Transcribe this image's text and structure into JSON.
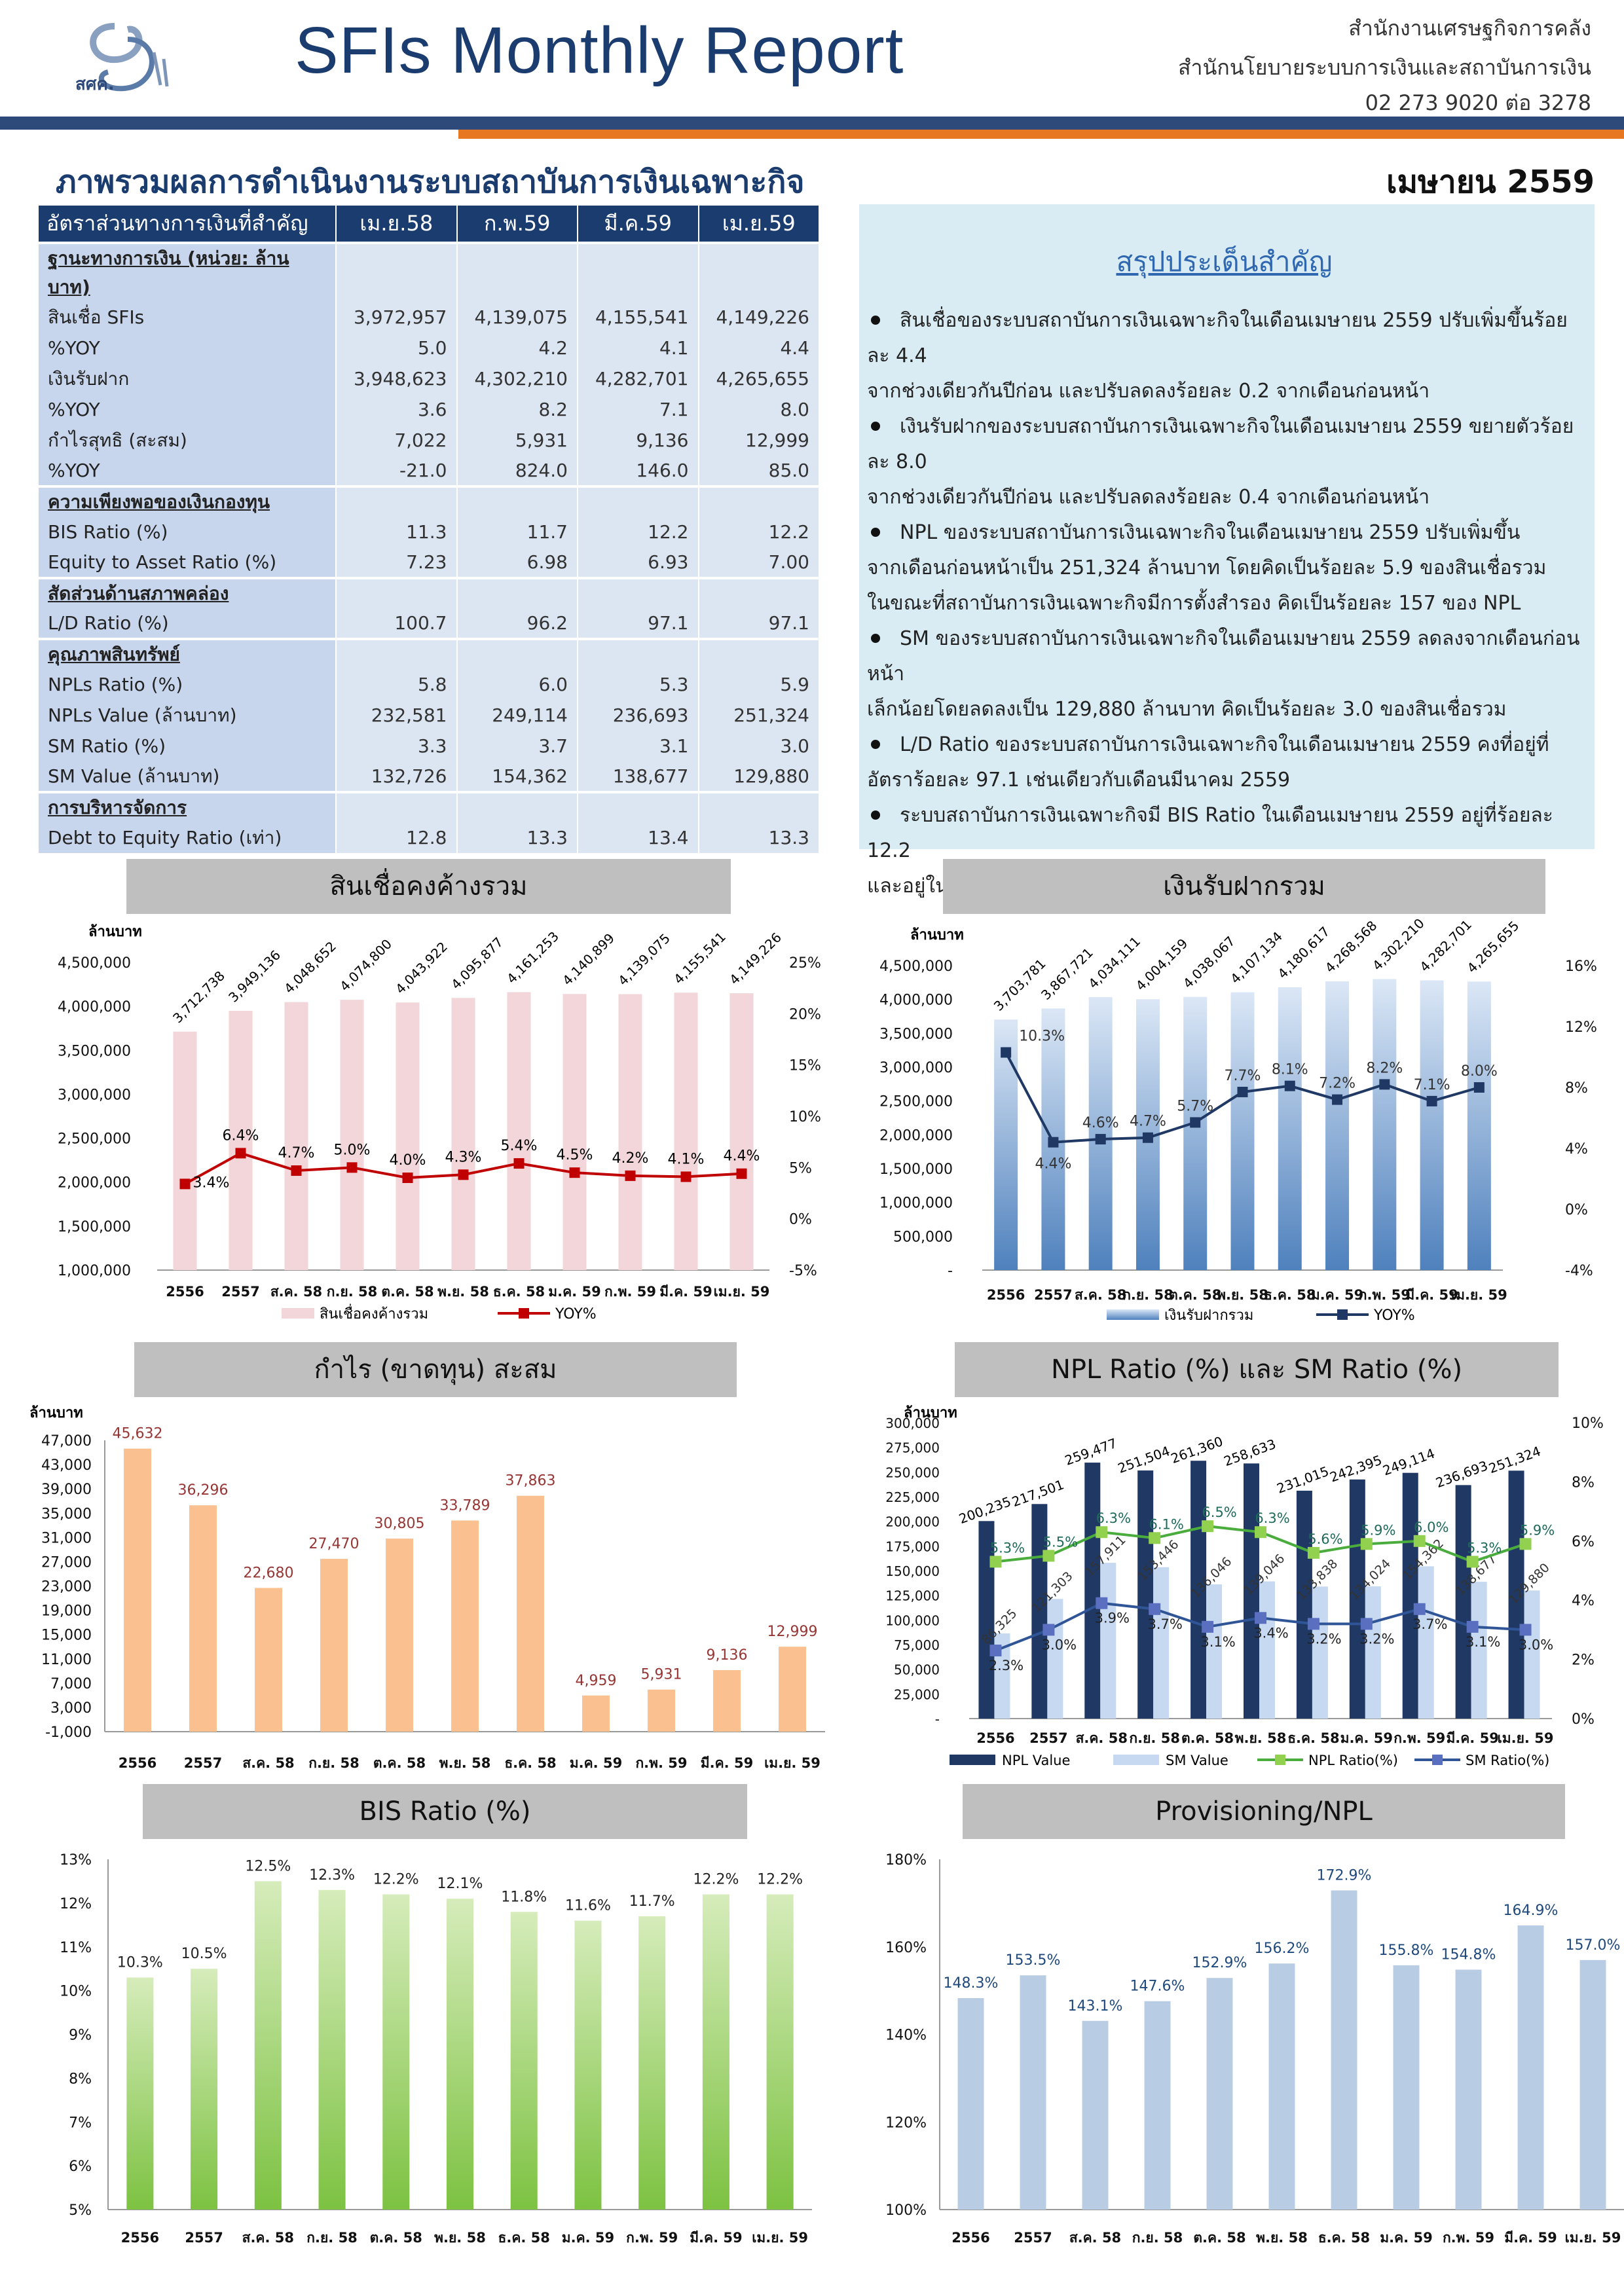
{
  "header": {
    "title": "SFIs Monthly Report",
    "logo_text": "สศค.",
    "agency1": "สำนักงานเศรษฐกิจการคลัง",
    "agency2": "สำนักนโยบายระบบการเงินและสถาบันการเงิน",
    "phone": "02 273 9020 ต่อ 3278"
  },
  "overview_title": "ภาพรวมผลการดำเนินงานระบบสถาบันการเงินเฉพาะกิจ",
  "month": "เมษายน 2559",
  "table": {
    "header": [
      "อัตราส่วนทางการเงินที่สำคัญ",
      "เม.ย.58",
      "ก.พ.59",
      "มี.ค.59",
      "เม.ย.59"
    ],
    "rows": [
      {
        "t": "sec",
        "l": "ฐานะทางการเงิน (หน่วย: ล้านบาท)",
        "v": [
          "",
          "",
          "",
          ""
        ]
      },
      {
        "l": "สินเชื่อ SFIs",
        "v": [
          "3,972,957",
          "4,139,075",
          "4,155,541",
          "4,149,226"
        ]
      },
      {
        "l": "%YOY",
        "v": [
          "5.0",
          "4.2",
          "4.1",
          "4.4"
        ]
      },
      {
        "l": "เงินรับฝาก",
        "v": [
          "3,948,623",
          "4,302,210",
          "4,282,701",
          "4,265,655"
        ]
      },
      {
        "l": "%YOY",
        "v": [
          "3.6",
          "8.2",
          "7.1",
          "8.0"
        ]
      },
      {
        "l": "กำไรสุทธิ (สะสม)",
        "v": [
          "7,022",
          "5,931",
          "9,136",
          "12,999"
        ]
      },
      {
        "l": "%YOY",
        "v": [
          "-21.0",
          "824.0",
          "146.0",
          "85.0"
        ]
      },
      {
        "t": "sec",
        "l": "ความเพียงพอของเงินกองทุน",
        "v": [
          "",
          "",
          "",
          ""
        ]
      },
      {
        "l": "BIS Ratio (%)",
        "v": [
          "11.3",
          "11.7",
          "12.2",
          "12.2"
        ]
      },
      {
        "l": "Equity to Asset Ratio (%)",
        "v": [
          "7.23",
          "6.98",
          "6.93",
          "7.00"
        ]
      },
      {
        "t": "sec",
        "l": "สัดส่วนด้านสภาพคล่อง",
        "v": [
          "",
          "",
          "",
          ""
        ]
      },
      {
        "l": "L/D Ratio (%)",
        "v": [
          "100.7",
          "96.2",
          "97.1",
          "97.1"
        ]
      },
      {
        "t": "sec",
        "l": "คุณภาพสินทรัพย์",
        "v": [
          "",
          "",
          "",
          ""
        ]
      },
      {
        "l": "NPLs Ratio (%)",
        "v": [
          "5.8",
          "6.0",
          "5.3",
          "5.9"
        ]
      },
      {
        "l": "NPLs Value (ล้านบาท)",
        "v": [
          "232,581",
          "249,114",
          "236,693",
          "251,324"
        ]
      },
      {
        "l": "SM Ratio (%)",
        "v": [
          "3.3",
          "3.7",
          "3.1",
          "3.0"
        ]
      },
      {
        "l": "SM Value (ล้านบาท)",
        "v": [
          "132,726",
          "154,362",
          "138,677",
          "129,880"
        ]
      },
      {
        "t": "sec",
        "l": "การบริหารจัดการ",
        "v": [
          "",
          "",
          "",
          ""
        ]
      },
      {
        "l": "Debt to Equity Ratio (เท่า)",
        "v": [
          "12.8",
          "13.3",
          "13.4",
          "13.3"
        ]
      }
    ]
  },
  "summary": {
    "title": "สรุปประเด็นสำคัญ",
    "bullets": [
      [
        "สินเชื่อของระบบสถาบันการเงินเฉพาะกิจในเดือนเมษายน 2559 ปรับเพิ่มขึ้นร้อยละ 4.4",
        "จากช่วงเดียวกันปีก่อน และปรับลดลงร้อยละ 0.2 จากเดือนก่อนหน้า"
      ],
      [
        "เงินรับฝากของระบบสถาบันการเงินเฉพาะกิจในเดือนเมษายน 2559 ขยายตัวร้อยละ 8.0",
        "จากช่วงเดียวกันปีก่อน และปรับลดลงร้อยละ 0.4 จากเดือนก่อนหน้า"
      ],
      [
        "NPL ของระบบสถาบันการเงินเฉพาะกิจในเดือนเมษายน 2559 ปรับเพิ่มขึ้น",
        "จากเดือนก่อนหน้าเป็น 251,324 ล้านบาท โดยคิดเป็นร้อยละ 5.9 ของสินเชื่อรวม",
        "ในขณะที่สถาบันการเงินเฉพาะกิจมีการตั้งสำรอง คิดเป็นร้อยละ 157 ของ NPL"
      ],
      [
        "SM ของระบบสถาบันการเงินเฉพาะกิจในเดือนเมษายน 2559 ลดลงจากเดือนก่อนหน้า",
        "เล็กน้อยโดยลดลงเป็น 129,880 ล้านบาท คิดเป็นร้อยละ 3.0 ของสินเชื่อรวม"
      ],
      [
        "L/D Ratio ของระบบสถาบันการเงินเฉพาะกิจในเดือนเมษายน 2559 คงที่อยู่ที่",
        "อัตราร้อยละ 97.1 เช่นเดียวกับเดือนมีนาคม 2559"
      ],
      [
        "ระบบสถาบันการเงินเฉพาะกิจมี BIS Ratio ในเดือนเมษายน 2559 อยู่ที่ร้อยละ 12.2",
        "และอยู่ในระดับที่เพียงพอต่อการดำเนินงานในระยะต่อไป"
      ]
    ]
  },
  "chart_data": [
    {
      "id": "loans",
      "type": "bar+line",
      "title": "สินเชื่อคงค้างรวม",
      "unit_label": "ล้านบาท",
      "categories": [
        "2556",
        "2557",
        "ส.ค. 58",
        "ก.ย. 58",
        "ต.ค. 58",
        "พ.ย. 58",
        "ธ.ค. 58",
        "ม.ค. 59",
        "ก.พ. 59",
        "มี.ค. 59",
        "เม.ย. 59"
      ],
      "bar_values": [
        3712738,
        3949136,
        4048652,
        4074800,
        4043922,
        4095877,
        4161253,
        4140899,
        4139075,
        4155541,
        4149226
      ],
      "bar_labels": [
        "3,712,738",
        "3,949,136",
        "4,048,652",
        "4,074,800",
        "4,043,922",
        "4,095,877",
        "4,161,253",
        "4,140,899",
        "4,139,075",
        "4,155,541",
        "4,149,226"
      ],
      "line_values": [
        3.4,
        6.4,
        4.7,
        5.0,
        4.0,
        4.3,
        5.4,
        4.5,
        4.2,
        4.1,
        4.4
      ],
      "line_labels": [
        "3.4%",
        "6.4%",
        "4.7%",
        "5.0%",
        "4.0%",
        "4.3%",
        "5.4%",
        "4.5%",
        "4.2%",
        "4.1%",
        "4.4%"
      ],
      "y_left": {
        "min": 1000000,
        "max": 4500000,
        "ticks": [
          "1,000,000",
          "1,500,000",
          "2,000,000",
          "2,500,000",
          "3,000,000",
          "3,500,000",
          "4,000,000",
          "4,500,000"
        ]
      },
      "y_right": {
        "min": -5,
        "max": 25,
        "ticks": [
          "-5%",
          "0%",
          "5%",
          "10%",
          "15%",
          "20%",
          "25%"
        ]
      },
      "legend": [
        "สินเชื่อคงค้างรวม",
        "YOY%"
      ],
      "bar_color": "#f2d6d9",
      "line_color": "#c00000"
    },
    {
      "id": "deposits",
      "type": "bar+line",
      "title": "เงินรับฝากรวม",
      "unit_label": "ล้านบาท",
      "categories": [
        "2556",
        "2557",
        "ส.ค. 58",
        "ก.ย. 58",
        "ต.ค. 58",
        "พ.ย. 58",
        "ธ.ค. 58",
        "ม.ค. 59",
        "ก.พ. 59",
        "มี.ค. 59",
        "เม.ย. 59"
      ],
      "bar_values": [
        3703781,
        3867721,
        4034111,
        4004159,
        4038067,
        4107134,
        4180617,
        4268568,
        4302210,
        4282701,
        4265655
      ],
      "bar_labels": [
        "3,703,781",
        "3,867,721",
        "4,034,111",
        "4,004,159",
        "4,038,067",
        "4,107,134",
        "4,180,617",
        "4,268,568",
        "4,302,210",
        "4,282,701",
        "4,265,655"
      ],
      "line_values": [
        10.3,
        4.4,
        4.6,
        4.7,
        5.7,
        7.7,
        8.1,
        7.2,
        8.2,
        7.1,
        8.0
      ],
      "line_labels": [
        "10.3%",
        "4.4%",
        "4.6%",
        "4.7%",
        "5.7%",
        "7.7%",
        "8.1%",
        "7.2%",
        "8.2%",
        "7.1%",
        "8.0%"
      ],
      "y_left": {
        "min": 0,
        "max": 4500000,
        "ticks": [
          "-",
          "500,000",
          "1,000,000",
          "1,500,000",
          "2,000,000",
          "2,500,000",
          "3,000,000",
          "3,500,000",
          "4,000,000",
          "4,500,000"
        ]
      },
      "y_right": {
        "min": -4,
        "max": 16,
        "ticks": [
          "-4%",
          "0%",
          "4%",
          "8%",
          "12%",
          "16%"
        ]
      },
      "legend": [
        "เงินรับฝากรวม",
        "YOY%"
      ],
      "bar_color": "#8db3e2",
      "line_color": "#1f3864"
    },
    {
      "id": "profit",
      "type": "bar",
      "title": "กำไร (ขาดทุน) สะสม",
      "unit_label": "ล้านบาท",
      "categories": [
        "2556",
        "2557",
        "ส.ค. 58",
        "ก.ย. 58",
        "ต.ค. 58",
        "พ.ย. 58",
        "ธ.ค. 58",
        "ม.ค. 59",
        "ก.พ. 59",
        "มี.ค. 59",
        "เม.ย. 59"
      ],
      "values": [
        45632,
        36296,
        22680,
        27470,
        30805,
        33789,
        37863,
        4959,
        5931,
        9136,
        12999
      ],
      "labels": [
        "45,632",
        "36,296",
        "22,680",
        "27,470",
        "30,805",
        "33,789",
        "37,863",
        "4,959",
        "5,931",
        "9,136",
        "12,999"
      ],
      "y": {
        "min": -1000,
        "max": 47000,
        "ticks": [
          "-1,000",
          "3,000",
          "7,000",
          "11,000",
          "15,000",
          "19,000",
          "23,000",
          "27,000",
          "31,000",
          "35,000",
          "39,000",
          "43,000",
          "47,000"
        ]
      },
      "bar_color": "#fac090",
      "label_color": "#963634"
    },
    {
      "id": "npl",
      "type": "bar+line",
      "title": "NPL Ratio (%) และ SM Ratio (%)",
      "unit_label": "ล้านบาท",
      "categories": [
        "2556",
        "2557",
        "ส.ค. 58",
        "ก.ย. 58",
        "ต.ค. 58",
        "พ.ย. 58",
        "ธ.ค. 58",
        "ม.ค. 59",
        "ก.พ. 59",
        "มี.ค. 59",
        "เม.ย. 59"
      ],
      "npl_value": [
        200235,
        217501,
        259477,
        251504,
        261360,
        258633,
        231015,
        242395,
        249114,
        236693,
        251324
      ],
      "npl_value_labels": [
        "200,235",
        "217,501",
        "259,477",
        "251,504",
        "261,360",
        "258,633",
        "231,015",
        "242,395",
        "249,114",
        "236,693",
        "251,324"
      ],
      "sm_value": [
        86325,
        121303,
        157911,
        153446,
        136046,
        139046,
        133838,
        134024,
        154362,
        138677,
        129880
      ],
      "sm_value_labels": [
        "86,325",
        "121,303",
        "157,911",
        "153,446",
        "136,046",
        "139,046",
        "133,838",
        "134,024",
        "154,362",
        "138,677",
        "129,880"
      ],
      "npl_ratio": [
        5.3,
        5.5,
        6.3,
        6.1,
        6.5,
        6.3,
        5.6,
        5.9,
        6.0,
        5.3,
        5.9
      ],
      "npl_ratio_labels": [
        "5.3%",
        "5.5%",
        "6.3%",
        "6.1%",
        "6.5%",
        "6.3%",
        "5.6%",
        "5.9%",
        "6.0%",
        "5.3%",
        "5.9%"
      ],
      "sm_ratio": [
        2.3,
        3.0,
        3.9,
        3.7,
        3.1,
        3.4,
        3.2,
        3.2,
        3.7,
        3.1,
        3.0
      ],
      "sm_ratio_labels": [
        "2.3%",
        "3.0%",
        "3.9%",
        "3.7%",
        "3.1%",
        "3.4%",
        "3.2%",
        "3.2%",
        "3.7%",
        "3.1%",
        "3.0%"
      ],
      "y_left": {
        "min": 0,
        "max": 300000,
        "ticks": [
          "-",
          "25,000",
          "50,000",
          "75,000",
          "100,000",
          "125,000",
          "150,000",
          "175,000",
          "200,000",
          "225,000",
          "250,000",
          "275,000",
          "300,000"
        ]
      },
      "y_right": {
        "min": 0,
        "max": 10,
        "ticks": [
          "0%",
          "2%",
          "4%",
          "6%",
          "8%",
          "10%"
        ]
      },
      "legend": [
        "NPL Value",
        "SM Value",
        "NPL Ratio(%)",
        "SM Ratio(%)"
      ]
    },
    {
      "id": "bis",
      "type": "bar",
      "title": "BIS Ratio (%)",
      "categories": [
        "2556",
        "2557",
        "ส.ค. 58",
        "ก.ย. 58",
        "ต.ค. 58",
        "พ.ย. 58",
        "ธ.ค. 58",
        "ม.ค. 59",
        "ก.พ. 59",
        "มี.ค. 59",
        "เม.ย. 59"
      ],
      "values": [
        10.3,
        10.5,
        12.5,
        12.3,
        12.2,
        12.1,
        11.8,
        11.6,
        11.7,
        12.2,
        12.2
      ],
      "labels": [
        "10.3%",
        "10.5%",
        "12.5%",
        "12.3%",
        "12.2%",
        "12.1%",
        "11.8%",
        "11.6%",
        "11.7%",
        "12.2%",
        "12.2%"
      ],
      "y": {
        "min": 5,
        "max": 13,
        "ticks": [
          "5%",
          "6%",
          "7%",
          "8%",
          "9%",
          "10%",
          "11%",
          "12%",
          "13%"
        ]
      },
      "bar_color": "#92d050",
      "label_color": "#222"
    },
    {
      "id": "prov",
      "type": "bar",
      "title": "Provisioning/NPL",
      "categories": [
        "2556",
        "2557",
        "ส.ค. 58",
        "ก.ย. 58",
        "ต.ค. 58",
        "พ.ย. 58",
        "ธ.ค. 58",
        "ม.ค. 59",
        "ก.พ. 59",
        "มี.ค. 59",
        "เม.ย. 59"
      ],
      "values": [
        148.3,
        153.5,
        143.1,
        147.6,
        152.9,
        156.2,
        172.9,
        155.8,
        154.8,
        164.9,
        157.0
      ],
      "labels": [
        "148.3%",
        "153.5%",
        "143.1%",
        "147.6%",
        "152.9%",
        "156.2%",
        "172.9%",
        "155.8%",
        "154.8%",
        "164.9%",
        "157.0%"
      ],
      "y": {
        "min": 100,
        "max": 180,
        "ticks": [
          "100%",
          "120%",
          "140%",
          "160%",
          "180%"
        ]
      },
      "bar_color": "#b8cce4",
      "label_color": "#1f497d"
    }
  ]
}
